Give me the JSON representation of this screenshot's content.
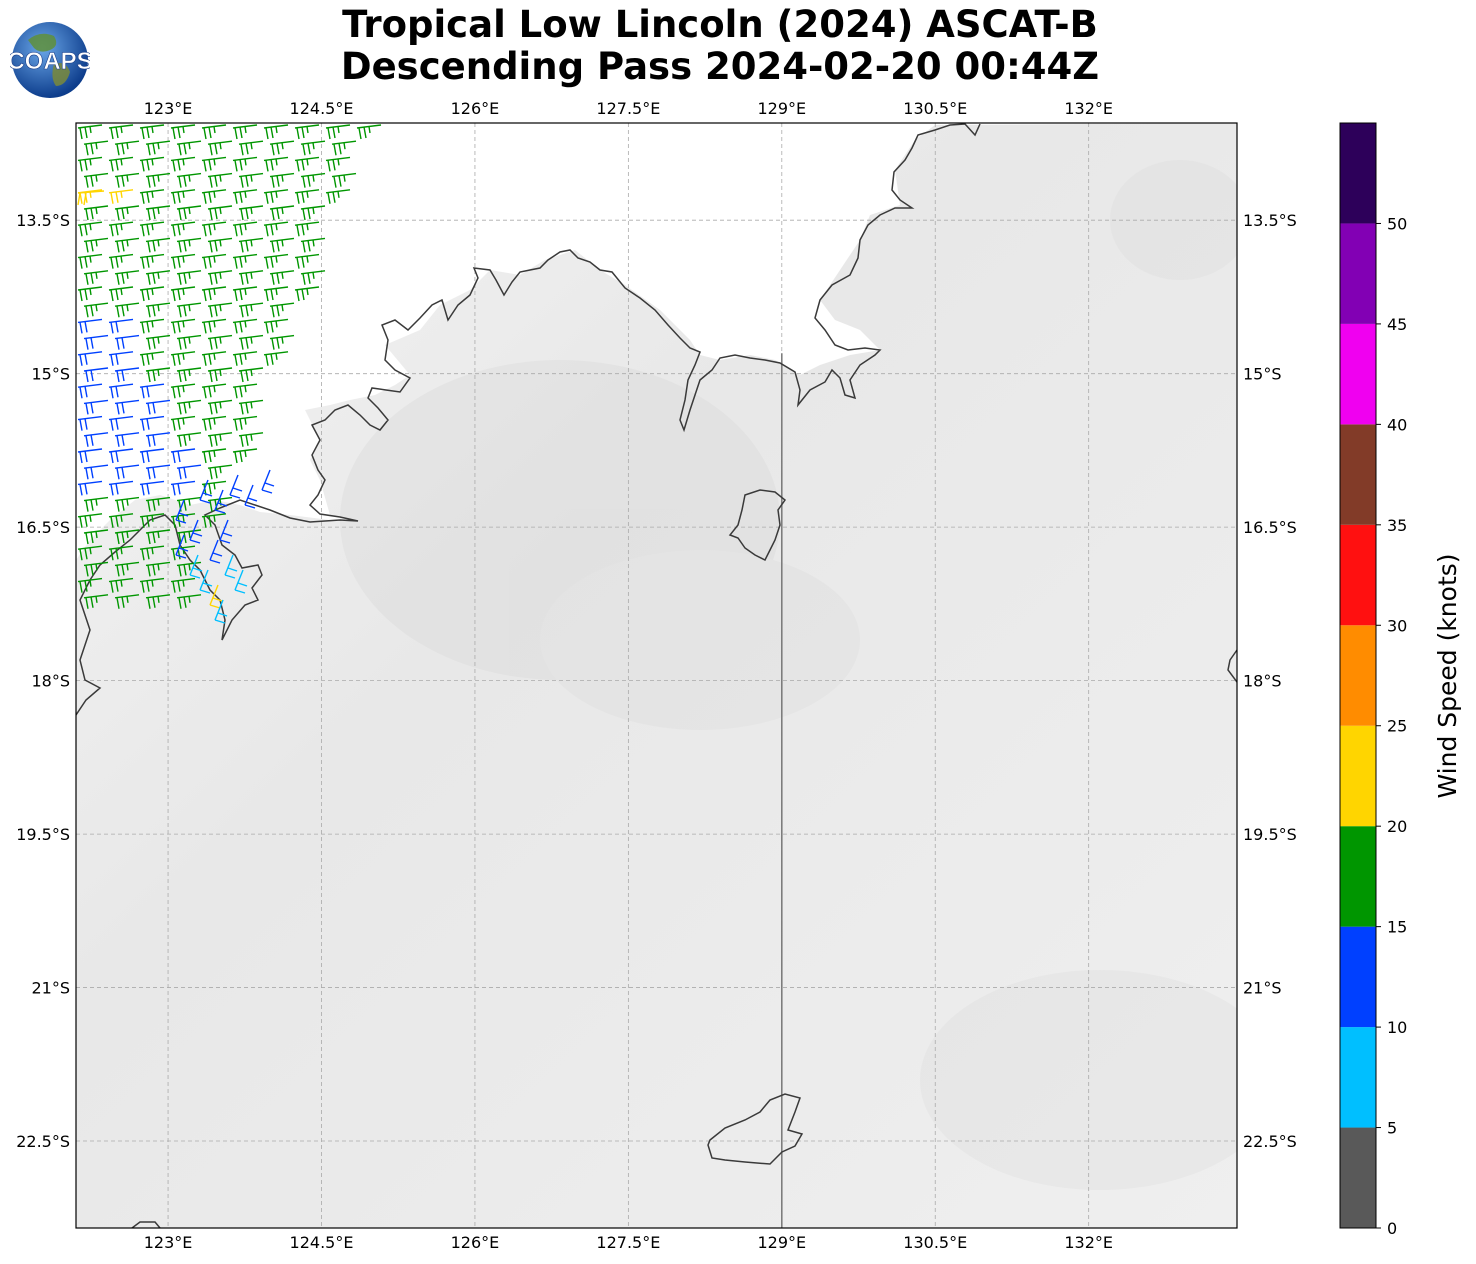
{
  "title": {
    "line1": "Tropical Low Lincoln (2024) ASCAT-B",
    "line2": "Descending Pass 2024-02-20 00:44Z"
  },
  "logo": {
    "text": "COAPS"
  },
  "map": {
    "lon_range": [
      122.1,
      133.45
    ],
    "lat_range": [
      -23.35,
      -12.55
    ],
    "lon_ticks": [
      {
        "value": 123.0,
        "label": "123°E"
      },
      {
        "value": 124.5,
        "label": "124.5°E"
      },
      {
        "value": 126.0,
        "label": "126°E"
      },
      {
        "value": 127.5,
        "label": "127.5°E"
      },
      {
        "value": 129.0,
        "label": "129°E"
      },
      {
        "value": 130.5,
        "label": "130.5°E"
      },
      {
        "value": 132.0,
        "label": "132°E"
      }
    ],
    "lat_ticks": [
      {
        "value": -13.5,
        "label": "13.5°S"
      },
      {
        "value": -15.0,
        "label": "15°S"
      },
      {
        "value": -16.5,
        "label": "16.5°S"
      },
      {
        "value": -18.0,
        "label": "18°S"
      },
      {
        "value": -19.5,
        "label": "19.5°S"
      },
      {
        "value": -21.0,
        "label": "21°S"
      },
      {
        "value": -22.5,
        "label": "22.5°S"
      }
    ],
    "border_lon": 129.0,
    "grid": true,
    "colors": {
      "coast": "#3a3a3a",
      "land_background": "#ececec",
      "grid": "#aaaaaa"
    }
  },
  "colorbar": {
    "label": "Wind Speed (knots)",
    "ticks": [
      {
        "value": 0,
        "label": "0"
      },
      {
        "value": 5,
        "label": "5"
      },
      {
        "value": 10,
        "label": "10"
      },
      {
        "value": 15,
        "label": "15"
      },
      {
        "value": 20,
        "label": "20"
      },
      {
        "value": 25,
        "label": "25"
      },
      {
        "value": 30,
        "label": "30"
      },
      {
        "value": 35,
        "label": "35"
      },
      {
        "value": 40,
        "label": "40"
      },
      {
        "value": 45,
        "label": "45"
      },
      {
        "value": 50,
        "label": "50"
      }
    ],
    "bins": [
      {
        "min": 0,
        "max": 5,
        "color": "#595959"
      },
      {
        "min": 5,
        "max": 10,
        "color": "#00bfff"
      },
      {
        "min": 10,
        "max": 15,
        "color": "#0040ff"
      },
      {
        "min": 15,
        "max": 20,
        "color": "#009600"
      },
      {
        "min": 20,
        "max": 25,
        "color": "#ffd500"
      },
      {
        "min": 25,
        "max": 30,
        "color": "#ff8c00"
      },
      {
        "min": 30,
        "max": 35,
        "color": "#ff1010"
      },
      {
        "min": 35,
        "max": 40,
        "color": "#823b28"
      },
      {
        "min": 40,
        "max": 45,
        "color": "#f000f0"
      },
      {
        "min": 45,
        "max": 50,
        "color": "#8200b4"
      },
      {
        "min": 50,
        "max": 55,
        "color": "#2d005a"
      }
    ]
  },
  "wind_barbs": {
    "coverage": {
      "lon_min": 122.1,
      "lon_max": 124.9,
      "lat_min": -18.1,
      "lat_max": -12.55
    },
    "dominant_direction": "from the west",
    "speed_knots_range": [
      5,
      22
    ]
  }
}
